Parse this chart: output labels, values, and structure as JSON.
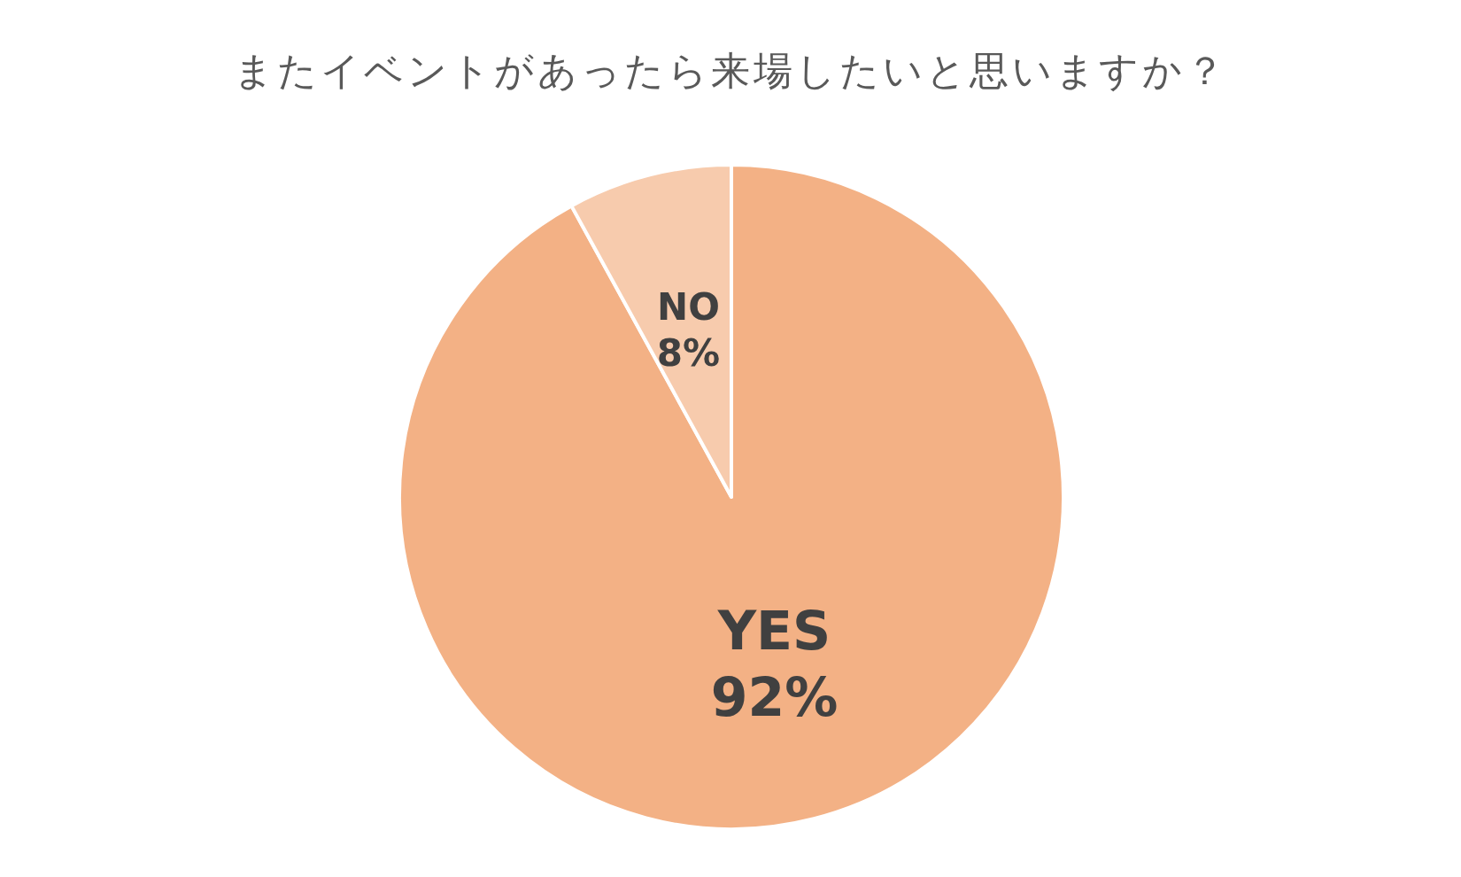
{
  "chart_data": {
    "type": "pie",
    "title": "またイベントがあったら来場したいと思いますか？",
    "categories": [
      "YES",
      "NO"
    ],
    "values": [
      92,
      8
    ],
    "colors": [
      "#f3b185",
      "#f7cbad"
    ],
    "value_labels": [
      "92%",
      "8%"
    ]
  }
}
